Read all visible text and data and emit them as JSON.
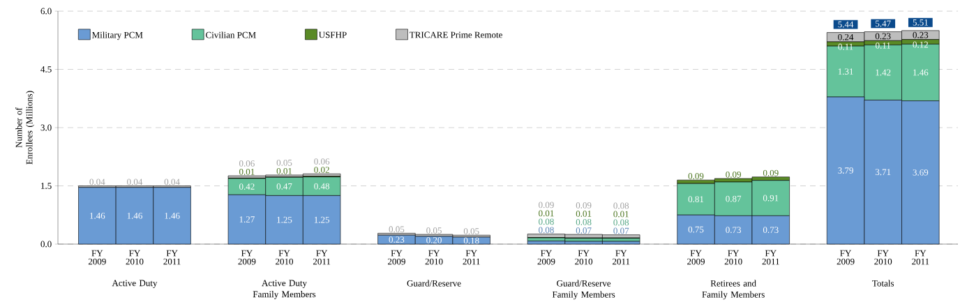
{
  "chart_data": {
    "type": "bar",
    "stacked": true,
    "ylabel": "Number of Enrollees (Millions)",
    "categories": [
      "FY 2009",
      "FY 2010",
      "FY 2011",
      "FY 2009",
      "FY 2010",
      "FY 2011",
      "FY 2009",
      "FY 2010",
      "FY 2011",
      "FY 2009",
      "FY 2010",
      "FY 2011",
      "FY 2009",
      "FY 2010",
      "FY 2011",
      "FY 2009",
      "FY 2010",
      "FY 2011"
    ],
    "annotations": [
      "Active Duty",
      "Active Duty Family Members",
      "Guard/Reserve",
      "Guard/Reserve Family Members",
      "Retirees and Family Members",
      "Totals"
    ],
    "series": [
      {
        "name": "Military PCM",
        "color": "#6a9bd4",
        "values": [
          1.46,
          1.46,
          1.46,
          1.27,
          1.25,
          1.25,
          0.23,
          0.2,
          0.18,
          0.08,
          0.07,
          0.07,
          0.75,
          0.73,
          0.73,
          3.79,
          3.71,
          3.69
        ],
        "value_labels": [
          "1.46",
          "1.46",
          "1.46",
          "1.27",
          "1.25",
          "1.25",
          "0.23",
          "0.20",
          "0.18",
          "0.08",
          "0.07",
          "0.07",
          "0.75",
          "0.73",
          "0.73",
          "3.79",
          "3.71",
          "3.69"
        ]
      },
      {
        "name": "Civilian PCM",
        "color": "#64c39b",
        "values": [
          0,
          0,
          0,
          0.42,
          0.47,
          0.48,
          0,
          0,
          0,
          0.08,
          0.08,
          0.08,
          0.81,
          0.87,
          0.91,
          1.31,
          1.42,
          1.46
        ],
        "value_labels": [
          null,
          null,
          null,
          "0.42",
          "0.47",
          "0.48",
          null,
          null,
          null,
          "0.08",
          "0.08",
          "0.08",
          "0.81",
          "0.87",
          "0.91",
          "1.31",
          "1.42",
          "1.46"
        ]
      },
      {
        "name": "USFHP",
        "color": "#5a8a26",
        "values": [
          0,
          0,
          0,
          0.01,
          0.01,
          0.02,
          0,
          0,
          0,
          0.01,
          0.01,
          0.01,
          0.09,
          0.09,
          0.09,
          0.11,
          0.11,
          0.12
        ],
        "value_labels": [
          null,
          null,
          null,
          "0.01",
          "0.01",
          "0.02",
          null,
          null,
          null,
          "0.01",
          "0.01",
          "0.01",
          "0.09",
          "0.09",
          "0.09",
          "0.11",
          "0.11",
          "0.12"
        ]
      },
      {
        "name": "TRICARE Prime Remote",
        "color": "#bdbdbd",
        "values": [
          0.04,
          0.04,
          0.04,
          0.06,
          0.05,
          0.06,
          0.05,
          0.05,
          0.05,
          0.09,
          0.09,
          0.08,
          0,
          0,
          0,
          0.24,
          0.23,
          0.23
        ],
        "value_labels": [
          "0.04",
          "0.04",
          "0.04",
          "0.06",
          "0.05",
          "0.06",
          "0.05",
          "0.05",
          "0.05",
          "0.09",
          "0.09",
          "0.08",
          null,
          null,
          null,
          "0.24",
          "0.23",
          "0.23"
        ]
      }
    ],
    "totals": [
      null,
      null,
      null,
      null,
      null,
      null,
      null,
      null,
      null,
      null,
      null,
      null,
      null,
      null,
      null,
      "5.44",
      "5.47",
      "5.51"
    ],
    "ylim": [
      0,
      6
    ],
    "yticks": [
      {
        "value": 0,
        "label": "0.0"
      },
      {
        "value": 1.5,
        "label": "1.5"
      },
      {
        "value": 3,
        "label": "3.0"
      },
      {
        "value": 4.5,
        "label": "4.5"
      },
      {
        "value": 6,
        "label": "6.0"
      }
    ],
    "grid": "y",
    "legend": "top left"
  }
}
